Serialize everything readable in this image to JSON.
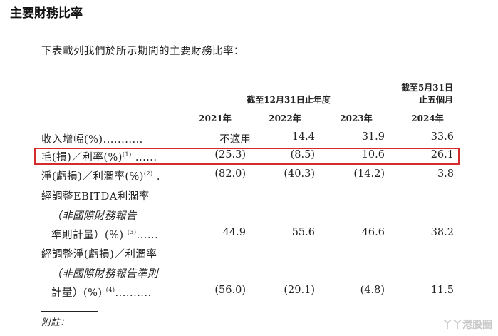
{
  "title": "主要財務比率",
  "intro": "下表載列我們於所示期間的主要財務比率：",
  "header": {
    "group_label": "截至12月31日止年度",
    "last_period_line1": "截至5月31日",
    "last_period_line2": "止五個月",
    "years": [
      "2021年",
      "2022年",
      "2023年",
      "2024年"
    ]
  },
  "rows": [
    {
      "label": "收入增幅(%)...........",
      "values": [
        "不適用",
        "14.4",
        "31.9",
        "33.6"
      ]
    },
    {
      "label": "毛(損)／利率(%)",
      "sup": "(1)",
      "leader": "......",
      "values": [
        "(25.3)",
        "(8.5)",
        "10.6",
        "26.1"
      ]
    },
    {
      "label": "淨(虧損)／利潤率(%)",
      "sup": "(2)",
      "leader": ".",
      "values": [
        "(82.0)",
        "(40.3)",
        "(14.2)",
        "3.8"
      ]
    },
    {
      "label_lines": [
        "經調整EBITDA利潤率",
        "（非國際財務報告",
        "準則計量）(%)"
      ],
      "sup": "(3)",
      "leader": "......",
      "values": [
        "44.9",
        "55.6",
        "46.6",
        "38.2"
      ]
    },
    {
      "label_lines": [
        "經調整淨(虧損)／利潤率",
        "（非國際財務報告準則",
        "計量）(%)"
      ],
      "sup": "(4)",
      "leader": "..........",
      "values": [
        "(56.0)",
        "(29.1)",
        "(4.8)",
        "11.5"
      ]
    }
  ],
  "note_label": "附註：",
  "watermark": "丫丫港股圈",
  "colors": {
    "highlight_border": "#d52b2b"
  }
}
